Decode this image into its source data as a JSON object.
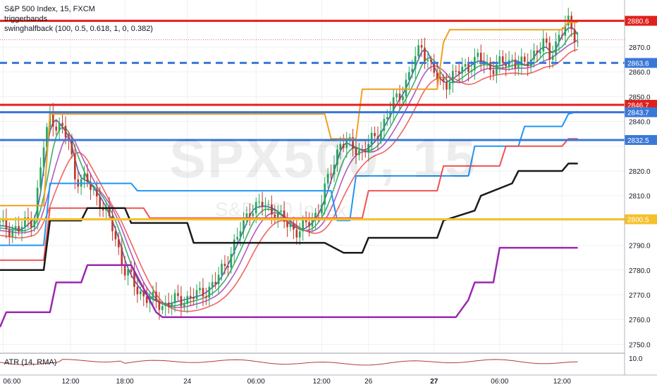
{
  "legend": {
    "title": "S&P 500 Index, 15, FXCM",
    "indicator1": "triggerbands",
    "indicator2": "swinghalfback (100, 0.5, 0.618, 1, 0, 0.382)"
  },
  "atr_label": "ATR (14, RMA)",
  "watermark": {
    "symbol": "SPX500, 15",
    "name": "S&P 500 Index"
  },
  "colors": {
    "red_level": "#e0201b",
    "blue_level": "#3a78d8",
    "dashed_blue": "#3a78d8",
    "yellow_level": "#f5c02a",
    "orange": "#f0a020",
    "sky": "#2196f3",
    "light_red": "#ef5350",
    "black": "#1a1a1a",
    "purple": "#9c27b0",
    "bull_candle": "#26a65b",
    "bear_candle": "#c0392b"
  },
  "chart_data": {
    "type": "candlestick",
    "title": "S&P 500 Index, 15, FXCM",
    "ylim": [
      2747,
      2889
    ],
    "y_ticks": [
      2750.0,
      2760.0,
      2770.0,
      2780.0,
      2790.0,
      2800.0,
      2810.0,
      2820.0,
      2830.0,
      2840.0,
      2850.0,
      2860.0,
      2870.0
    ],
    "x_ticks": [
      "06:00",
      "12:00",
      "18:00",
      "24",
      "06:00",
      "12:00",
      "26",
      "27",
      "06:00",
      "12:00"
    ],
    "horizontal_levels": [
      {
        "value": 2880.6,
        "label": "2880.6",
        "color": "#e0201b",
        "style": "solid"
      },
      {
        "value": 2863.6,
        "label": "2863.6",
        "color": "#3a78d8",
        "style": "dashed"
      },
      {
        "value": 2846.7,
        "label": "2846.7",
        "color": "#e0201b",
        "style": "solid"
      },
      {
        "value": 2843.7,
        "label": "2843.7",
        "color": "#3a78d8",
        "style": "solid"
      },
      {
        "value": 2832.5,
        "label": "2832.5",
        "color": "#3a78d8",
        "style": "solid"
      },
      {
        "value": 2800.5,
        "label": "2800.5",
        "color": "#f5c02a",
        "style": "solid"
      }
    ],
    "last_price": 2873.0,
    "price_path": [
      [
        0.0,
        2798
      ],
      [
        0.03,
        2796
      ],
      [
        0.055,
        2802
      ],
      [
        0.07,
        2830
      ],
      [
        0.08,
        2842
      ],
      [
        0.095,
        2838
      ],
      [
        0.11,
        2832
      ],
      [
        0.12,
        2818
      ],
      [
        0.14,
        2815
      ],
      [
        0.16,
        2808
      ],
      [
        0.18,
        2797
      ],
      [
        0.2,
        2780
      ],
      [
        0.22,
        2772
      ],
      [
        0.24,
        2768
      ],
      [
        0.26,
        2766
      ],
      [
        0.29,
        2768
      ],
      [
        0.32,
        2770
      ],
      [
        0.345,
        2775
      ],
      [
        0.36,
        2782
      ],
      [
        0.38,
        2793
      ],
      [
        0.4,
        2805
      ],
      [
        0.42,
        2806
      ],
      [
        0.44,
        2804
      ],
      [
        0.46,
        2798
      ],
      [
        0.48,
        2796
      ],
      [
        0.5,
        2800
      ],
      [
        0.515,
        2808
      ],
      [
        0.53,
        2820
      ],
      [
        0.545,
        2832
      ],
      [
        0.56,
        2830
      ],
      [
        0.58,
        2828
      ],
      [
        0.6,
        2833
      ],
      [
        0.615,
        2840
      ],
      [
        0.63,
        2847
      ],
      [
        0.645,
        2853
      ],
      [
        0.66,
        2862
      ],
      [
        0.675,
        2871
      ],
      [
        0.69,
        2862
      ],
      [
        0.705,
        2855
      ],
      [
        0.725,
        2858
      ],
      [
        0.745,
        2862
      ],
      [
        0.765,
        2865
      ],
      [
        0.785,
        2862
      ],
      [
        0.805,
        2863
      ],
      [
        0.82,
        2865
      ],
      [
        0.84,
        2862
      ],
      [
        0.855,
        2868
      ],
      [
        0.87,
        2871
      ],
      [
        0.88,
        2866
      ],
      [
        0.895,
        2875
      ],
      [
        0.91,
        2879
      ],
      [
        0.925,
        2873
      ]
    ],
    "indicator_lines": [
      {
        "name": "orange",
        "color": "#f0a020",
        "width": 2,
        "points": [
          [
            0,
            2806
          ],
          [
            0.07,
            2806
          ],
          [
            0.08,
            2843
          ],
          [
            0.52,
            2843
          ],
          [
            0.53,
            2833
          ],
          [
            0.57,
            2833
          ],
          [
            0.58,
            2853
          ],
          [
            0.7,
            2853
          ],
          [
            0.71,
            2872
          ],
          [
            0.72,
            2877
          ],
          [
            0.9,
            2877
          ],
          [
            0.91,
            2880
          ],
          [
            0.925,
            2880
          ]
        ]
      },
      {
        "name": "sky",
        "color": "#2196f3",
        "width": 2,
        "points": [
          [
            0,
            2790
          ],
          [
            0.07,
            2790
          ],
          [
            0.08,
            2815
          ],
          [
            0.21,
            2815
          ],
          [
            0.22,
            2812
          ],
          [
            0.53,
            2812
          ],
          [
            0.54,
            2800
          ],
          [
            0.56,
            2800
          ],
          [
            0.57,
            2818
          ],
          [
            0.75,
            2818
          ],
          [
            0.76,
            2830
          ],
          [
            0.83,
            2830
          ],
          [
            0.84,
            2838
          ],
          [
            0.9,
            2838
          ],
          [
            0.91,
            2843
          ],
          [
            0.925,
            2844
          ]
        ]
      },
      {
        "name": "light_red",
        "color": "#ef5350",
        "width": 2,
        "points": [
          [
            0,
            2784
          ],
          [
            0.07,
            2784
          ],
          [
            0.08,
            2805
          ],
          [
            0.23,
            2805
          ],
          [
            0.24,
            2801
          ],
          [
            0.58,
            2801
          ],
          [
            0.59,
            2812
          ],
          [
            0.7,
            2812
          ],
          [
            0.71,
            2822
          ],
          [
            0.8,
            2822
          ],
          [
            0.81,
            2830
          ],
          [
            0.9,
            2830
          ],
          [
            0.91,
            2833
          ],
          [
            0.925,
            2833
          ]
        ]
      },
      {
        "name": "black",
        "color": "#1a1a1a",
        "width": 2.5,
        "points": [
          [
            0,
            2780
          ],
          [
            0.07,
            2780
          ],
          [
            0.08,
            2800
          ],
          [
            0.13,
            2800
          ],
          [
            0.14,
            2805
          ],
          [
            0.2,
            2805
          ],
          [
            0.21,
            2799
          ],
          [
            0.3,
            2799
          ],
          [
            0.31,
            2791
          ],
          [
            0.52,
            2791
          ],
          [
            0.55,
            2787
          ],
          [
            0.58,
            2787
          ],
          [
            0.59,
            2793
          ],
          [
            0.7,
            2793
          ],
          [
            0.71,
            2800
          ],
          [
            0.76,
            2804
          ],
          [
            0.77,
            2810
          ],
          [
            0.82,
            2815
          ],
          [
            0.83,
            2820
          ],
          [
            0.9,
            2820
          ],
          [
            0.91,
            2823
          ],
          [
            0.925,
            2823
          ]
        ]
      },
      {
        "name": "purple",
        "color": "#9c27b0",
        "width": 2.5,
        "points": [
          [
            0,
            2757
          ],
          [
            0.01,
            2763
          ],
          [
            0.08,
            2763
          ],
          [
            0.09,
            2775
          ],
          [
            0.13,
            2775
          ],
          [
            0.14,
            2782
          ],
          [
            0.21,
            2782
          ],
          [
            0.25,
            2763
          ],
          [
            0.26,
            2761
          ],
          [
            0.73,
            2761
          ],
          [
            0.75,
            2768
          ],
          [
            0.76,
            2775
          ],
          [
            0.79,
            2775
          ],
          [
            0.8,
            2789
          ],
          [
            0.84,
            2789
          ],
          [
            0.925,
            2789
          ]
        ]
      }
    ],
    "moving_averages": [
      {
        "name": "ma_fast",
        "color": "#3f51b5",
        "lag": 2,
        "offset": 0
      },
      {
        "name": "ma_green",
        "color": "#26a65b",
        "lag": 5,
        "offset": -1
      },
      {
        "name": "ma_purple",
        "color": "#ab47bc",
        "lag": 8,
        "offset": -2
      },
      {
        "name": "ma_red",
        "color": "#ef5350",
        "lag": 12,
        "offset": -4
      }
    ],
    "atr": {
      "name": "ATR (14, RMA)",
      "ticks": [
        10.0
      ],
      "color": "#b23b3b"
    }
  }
}
